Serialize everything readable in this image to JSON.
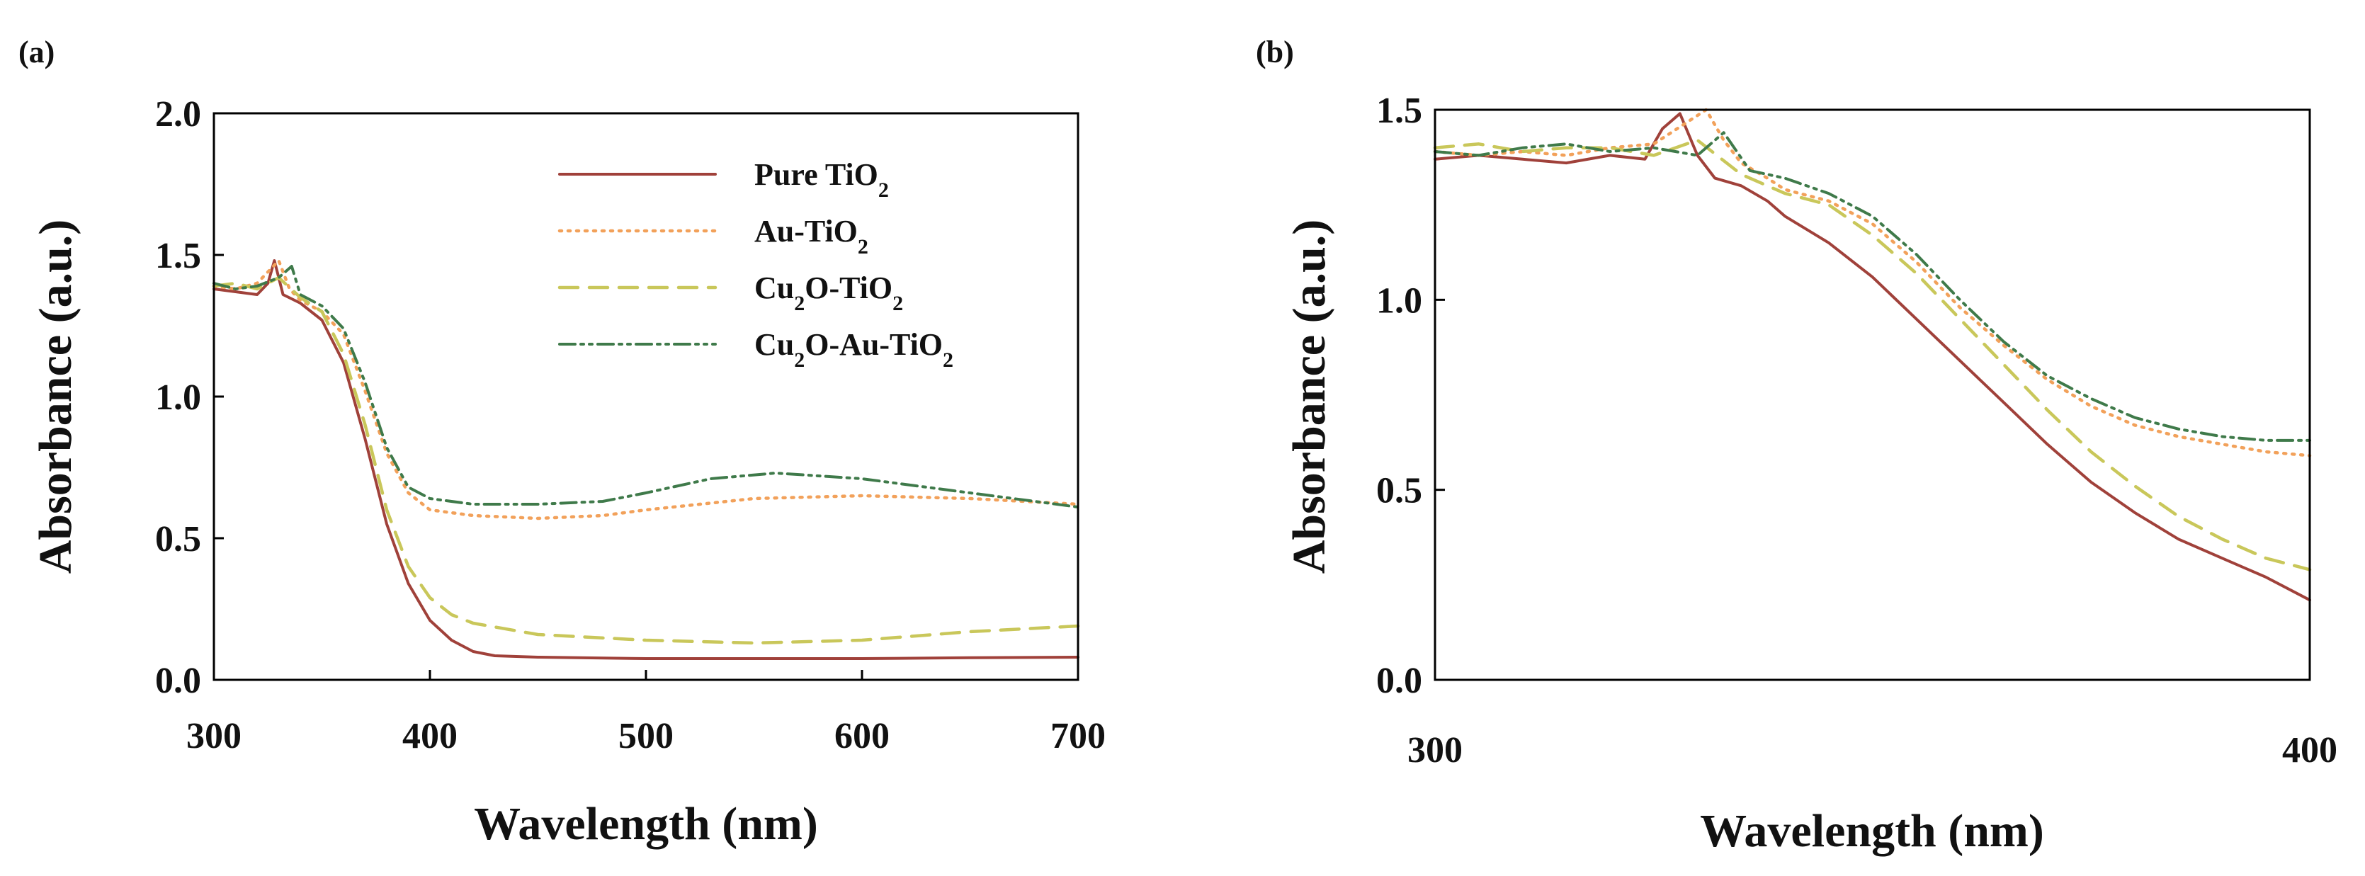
{
  "figure": {
    "styles": {
      "pure": {
        "color": "#A0413A",
        "dash": "",
        "width": 4
      },
      "au": {
        "color": "#F2A15A",
        "dash": "3,9",
        "width": 4.5
      },
      "cu2o": {
        "color": "#C9C75A",
        "dash": "26,16",
        "width": 4.5
      },
      "cu2oau": {
        "color": "#3F7A4A",
        "dash": "22,8,4,8,4,8",
        "width": 4
      }
    },
    "legend": [
      {
        "key": "pure",
        "label_main": "Pure TiO",
        "label_sub": "2",
        "label_tail": ""
      },
      {
        "key": "au",
        "label_main": "Au-TiO",
        "label_sub": "2",
        "label_tail": ""
      },
      {
        "key": "cu2o",
        "label_main": "Cu",
        "label_sub": "2",
        "label_tail": "O-TiO",
        "label_sub2": "2"
      },
      {
        "key": "cu2oau",
        "label_main": "Cu",
        "label_sub": "2",
        "label_tail": "O-Au-TiO",
        "label_sub2": "2"
      }
    ]
  },
  "chart_data": [
    {
      "type": "line",
      "panel": "(a)",
      "xlabel": "Wavelength (nm)",
      "ylabel": "Absorbance (a.u.)",
      "xlim": [
        300,
        700
      ],
      "ylim": [
        0.0,
        2.0
      ],
      "xticks": [
        300,
        400,
        500,
        600,
        700
      ],
      "yticks": [
        0.0,
        0.5,
        1.0,
        1.5,
        2.0
      ],
      "ytick_labels": [
        "0.0",
        "0.5",
        "1.0",
        "1.5",
        "2.0"
      ],
      "legend_location": "top-right",
      "series": [
        {
          "key": "pure",
          "name": "Pure TiO2",
          "x": [
            300,
            310,
            320,
            325,
            328,
            332,
            340,
            350,
            360,
            370,
            380,
            390,
            400,
            410,
            420,
            430,
            450,
            500,
            550,
            600,
            650,
            700
          ],
          "y": [
            1.38,
            1.37,
            1.36,
            1.4,
            1.48,
            1.36,
            1.33,
            1.27,
            1.12,
            0.85,
            0.55,
            0.34,
            0.21,
            0.14,
            0.1,
            0.085,
            0.08,
            0.075,
            0.075,
            0.075,
            0.078,
            0.08
          ]
        },
        {
          "key": "au",
          "name": "Au-TiO2",
          "x": [
            300,
            310,
            320,
            330,
            335,
            340,
            350,
            360,
            370,
            380,
            390,
            400,
            420,
            450,
            480,
            500,
            550,
            600,
            650,
            700
          ],
          "y": [
            1.39,
            1.38,
            1.4,
            1.48,
            1.38,
            1.34,
            1.3,
            1.22,
            1.02,
            0.8,
            0.66,
            0.6,
            0.58,
            0.57,
            0.58,
            0.6,
            0.64,
            0.65,
            0.64,
            0.62
          ]
        },
        {
          "key": "cu2o",
          "name": "Cu2O-TiO2",
          "x": [
            300,
            310,
            320,
            330,
            340,
            350,
            360,
            370,
            380,
            390,
            400,
            410,
            420,
            450,
            500,
            550,
            600,
            650,
            700
          ],
          "y": [
            1.39,
            1.4,
            1.38,
            1.42,
            1.35,
            1.3,
            1.15,
            0.9,
            0.6,
            0.4,
            0.29,
            0.23,
            0.2,
            0.16,
            0.14,
            0.13,
            0.14,
            0.17,
            0.19
          ]
        },
        {
          "key": "cu2oau",
          "name": "Cu2O-Au-TiO2",
          "x": [
            300,
            310,
            320,
            330,
            336,
            340,
            350,
            360,
            370,
            380,
            390,
            400,
            420,
            450,
            480,
            500,
            530,
            560,
            600,
            650,
            700
          ],
          "y": [
            1.4,
            1.38,
            1.39,
            1.42,
            1.46,
            1.36,
            1.32,
            1.24,
            1.05,
            0.82,
            0.68,
            0.64,
            0.62,
            0.62,
            0.63,
            0.66,
            0.71,
            0.73,
            0.71,
            0.66,
            0.61
          ]
        }
      ]
    },
    {
      "type": "line",
      "panel": "(b)",
      "xlabel": "Wavelength (nm)",
      "ylabel": "Absorbance (a.u.)",
      "xlim": [
        300,
        400
      ],
      "ylim": [
        0.0,
        1.5
      ],
      "xticks": [
        300,
        400
      ],
      "yticks": [
        0.0,
        0.5,
        1.0,
        1.5
      ],
      "ytick_labels": [
        "0.0",
        "0.5",
        "1.0",
        "1.5"
      ],
      "series": [
        {
          "key": "pure",
          "name": "Pure TiO2",
          "x": [
            300,
            305,
            310,
            315,
            320,
            324,
            326,
            328,
            330,
            332,
            335,
            338,
            340,
            345,
            350,
            355,
            360,
            365,
            370,
            375,
            380,
            385,
            390,
            395,
            400
          ],
          "y": [
            1.37,
            1.38,
            1.37,
            1.36,
            1.38,
            1.37,
            1.45,
            1.49,
            1.38,
            1.32,
            1.3,
            1.26,
            1.22,
            1.15,
            1.06,
            0.95,
            0.84,
            0.73,
            0.62,
            0.52,
            0.44,
            0.37,
            0.32,
            0.27,
            0.21
          ]
        },
        {
          "key": "au",
          "name": "Au-TiO2",
          "x": [
            300,
            305,
            310,
            315,
            320,
            325,
            329,
            331,
            333,
            335,
            338,
            340,
            345,
            350,
            355,
            360,
            365,
            370,
            375,
            380,
            385,
            390,
            395,
            400
          ],
          "y": [
            1.39,
            1.38,
            1.39,
            1.38,
            1.4,
            1.41,
            1.47,
            1.5,
            1.42,
            1.36,
            1.32,
            1.29,
            1.26,
            1.2,
            1.1,
            0.98,
            0.88,
            0.79,
            0.72,
            0.67,
            0.64,
            0.62,
            0.6,
            0.59
          ]
        },
        {
          "key": "cu2o",
          "name": "Cu2O-TiO2",
          "x": [
            300,
            305,
            310,
            315,
            320,
            325,
            330,
            335,
            340,
            345,
            350,
            355,
            360,
            365,
            370,
            375,
            380,
            385,
            390,
            395,
            400
          ],
          "y": [
            1.4,
            1.41,
            1.39,
            1.4,
            1.4,
            1.38,
            1.42,
            1.33,
            1.28,
            1.25,
            1.17,
            1.07,
            0.95,
            0.83,
            0.71,
            0.6,
            0.51,
            0.43,
            0.37,
            0.32,
            0.29
          ]
        },
        {
          "key": "cu2oau",
          "name": "Cu2O-Au-TiO2",
          "x": [
            300,
            305,
            310,
            315,
            320,
            325,
            330,
            333,
            336,
            340,
            345,
            350,
            355,
            360,
            365,
            370,
            375,
            380,
            385,
            390,
            395,
            400
          ],
          "y": [
            1.39,
            1.38,
            1.4,
            1.41,
            1.39,
            1.4,
            1.38,
            1.44,
            1.34,
            1.32,
            1.28,
            1.22,
            1.12,
            1.0,
            0.89,
            0.8,
            0.74,
            0.69,
            0.66,
            0.64,
            0.63,
            0.63
          ]
        }
      ]
    }
  ]
}
